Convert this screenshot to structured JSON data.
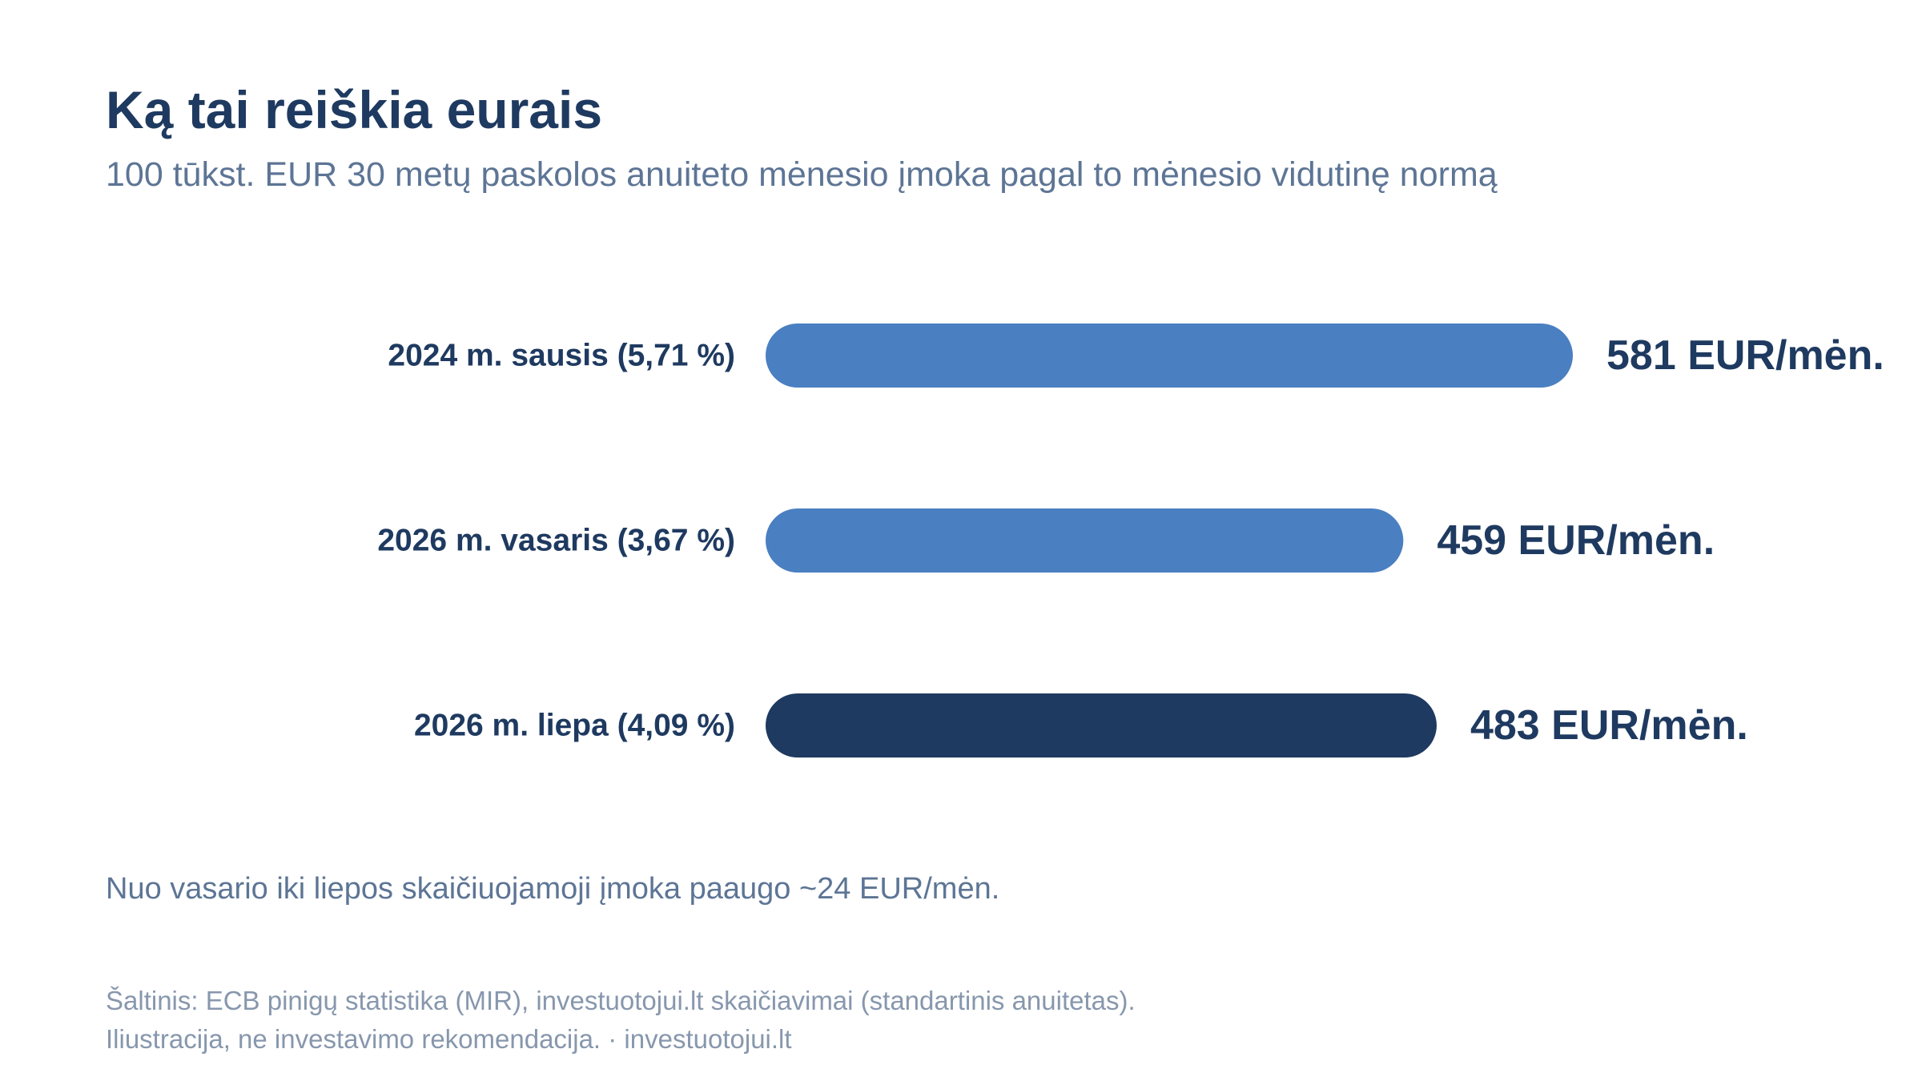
{
  "header": {
    "title": "Ką tai reiškia eurais",
    "subtitle": "100 tūkst. EUR 30 metų paskolos anuiteto mėnesio įmoka pagal to mėnesio vidutinę normą"
  },
  "chart_data": {
    "type": "bar",
    "orientation": "horizontal",
    "categories": [
      "2024 m. sausis (5,71 %)",
      "2026 m. vasaris (3,67 %)",
      "2026 m. liepa (4,09 %)"
    ],
    "values": [
      581,
      459,
      483
    ],
    "value_labels": [
      "581 EUR/mėn.",
      "459 EUR/mėn.",
      "483 EUR/mėn."
    ],
    "bar_colors": [
      "#4a7fc1",
      "#4a7fc1",
      "#1f3a60"
    ],
    "xlim": [
      0,
      581
    ],
    "grid": false
  },
  "colors": {
    "primary_bar": "#4a7fc1",
    "highlight_bar": "#1f3a60",
    "text_dark": "#1f3a60",
    "text_muted": "#5d7595",
    "text_light": "#8797ad"
  },
  "note": "Nuo vasario iki liepos skaičiuojamoji įmoka paaugo ~24 EUR/mėn.",
  "footer": {
    "source_line": "Šaltinis: ECB pinigų statistika (MIR), investuotojui.lt skaičiavimai (standartinis anuitetas).",
    "disclaimer_line": "Iliustracija, ne investavimo rekomendacija. · investuotojui.lt"
  }
}
